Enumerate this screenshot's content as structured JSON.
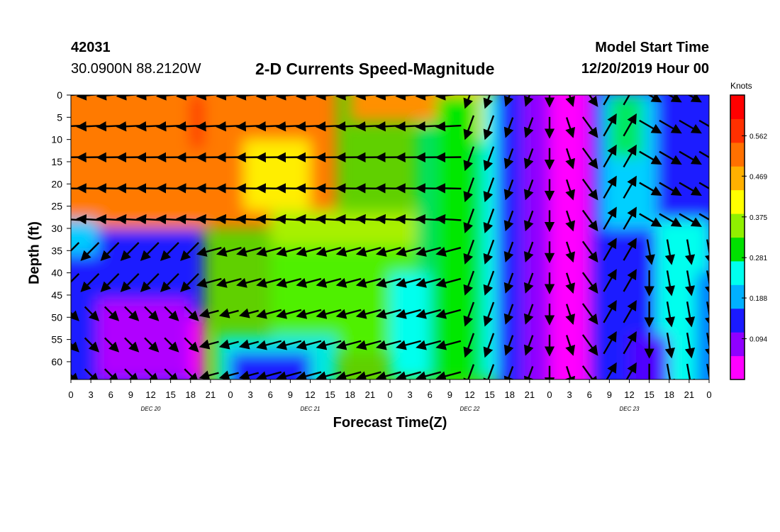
{
  "header": {
    "station_id": "42031",
    "coords": "30.0900N 88.2120W",
    "title": "2-D Currents Speed-Magnitude",
    "model_label": "Model Start Time",
    "model_time": "12/20/2019 Hour 00"
  },
  "chart_data": {
    "type": "heatmap",
    "title": "2-D Currents Speed-Magnitude",
    "xlabel": "Forecast Time(Z)",
    "ylabel": "Depth (ft)",
    "x_ticks": [
      "0",
      "3",
      "6",
      "9",
      "12",
      "15",
      "18",
      "21",
      "0",
      "3",
      "6",
      "9",
      "12",
      "15",
      "18",
      "21",
      "0",
      "3",
      "6",
      "9",
      "12",
      "15",
      "18",
      "21",
      "0",
      "3",
      "6",
      "9",
      "12",
      "15",
      "18",
      "21",
      "0"
    ],
    "date_labels": [
      {
        "label": "DEC 20",
        "hour": 12
      },
      {
        "label": "DEC 21",
        "hour": 36
      },
      {
        "label": "DEC 22",
        "hour": 60
      },
      {
        "label": "DEC 23",
        "hour": 84
      }
    ],
    "x_range_hours": [
      0,
      96
    ],
    "y_ticks": [
      0,
      5,
      10,
      15,
      20,
      25,
      30,
      35,
      40,
      45,
      50,
      55,
      60
    ],
    "ylim": [
      0,
      64
    ],
    "y_inverted": true,
    "colorbar": {
      "units": "Knots",
      "ticks": [
        "0.562",
        "0.469",
        "0.375",
        "0.281",
        "0.188",
        "0.094"
      ],
      "range": [
        0,
        0.656
      ],
      "colors": [
        "#ff00ff",
        "#9000ff",
        "#1a1aff",
        "#00b0ff",
        "#00ffee",
        "#00e000",
        "#90f000",
        "#ffff00",
        "#ffb000",
        "#ff7000",
        "#ff3000",
        "#ff0000"
      ]
    }
  }
}
